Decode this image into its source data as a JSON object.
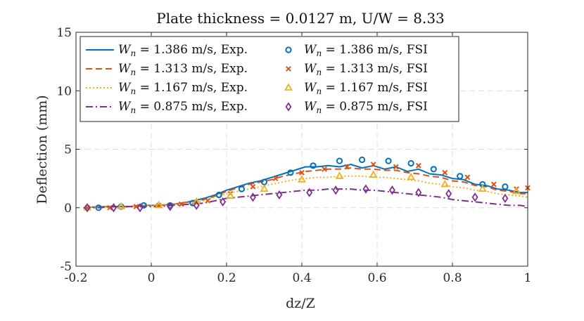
{
  "chart_data": {
    "type": "line",
    "title": "Plate thickness = 0.0127 m, U/W = 8.33",
    "xlabel": "dz/Z",
    "ylabel": "Deflection (mm)",
    "xlim": [
      -0.2,
      1.0
    ],
    "ylim": [
      -5,
      15
    ],
    "xticks": [
      -0.2,
      0,
      0.2,
      0.4,
      0.6,
      0.8,
      1.0
    ],
    "xtick_labels": [
      "-0.2",
      "0",
      "0.2",
      "0.4",
      "0.6",
      "0.8",
      "1"
    ],
    "yticks": [
      -5,
      0,
      5,
      10,
      15
    ],
    "ytick_labels": [
      "-5",
      "0",
      "5",
      "10",
      "15"
    ],
    "grid": true,
    "legend_position": "top-left",
    "series": [
      {
        "name": "W_n = 1.386 m/s, Exp.",
        "legend_var": "W",
        "legend_sub": "n",
        "legend_rest": " = 1.386 m/s, Exp.",
        "kind": "line",
        "style": "solid",
        "color": "#0072BD",
        "x": [
          -0.18,
          -0.14,
          -0.1,
          -0.06,
          -0.02,
          0.02,
          0.06,
          0.1,
          0.14,
          0.17,
          0.2,
          0.23,
          0.26,
          0.29,
          0.32,
          0.35,
          0.38,
          0.41,
          0.44,
          0.47,
          0.5,
          0.53,
          0.56,
          0.59,
          0.62,
          0.65,
          0.68,
          0.71,
          0.74,
          0.77,
          0.8,
          0.83,
          0.86,
          0.89,
          0.92,
          0.95,
          0.98,
          1.0
        ],
        "y": [
          0.0,
          0.1,
          0.1,
          0.1,
          0.2,
          0.2,
          0.3,
          0.5,
          0.8,
          1.1,
          1.5,
          1.8,
          2.1,
          2.3,
          2.6,
          2.9,
          3.2,
          3.5,
          3.5,
          3.6,
          3.5,
          3.7,
          3.4,
          3.6,
          3.3,
          3.5,
          3.1,
          3.3,
          2.9,
          2.8,
          2.5,
          2.4,
          2.0,
          1.9,
          1.6,
          1.5,
          1.3,
          1.3
        ]
      },
      {
        "name": "W_n = 1.313 m/s, Exp.",
        "legend_var": "W",
        "legend_sub": "n",
        "legend_rest": " = 1.313 m/s, Exp.",
        "kind": "line",
        "style": "dashed",
        "color": "#D95319",
        "x": [
          -0.18,
          -0.14,
          -0.1,
          -0.06,
          -0.02,
          0.02,
          0.06,
          0.1,
          0.14,
          0.17,
          0.2,
          0.23,
          0.26,
          0.29,
          0.32,
          0.35,
          0.38,
          0.41,
          0.44,
          0.47,
          0.5,
          0.53,
          0.56,
          0.59,
          0.62,
          0.65,
          0.68,
          0.71,
          0.74,
          0.77,
          0.8,
          0.83,
          0.86,
          0.89,
          0.92,
          0.95,
          0.98,
          1.0
        ],
        "y": [
          0.0,
          0.1,
          0.1,
          0.1,
          0.2,
          0.2,
          0.3,
          0.5,
          0.7,
          1.0,
          1.4,
          1.7,
          2.0,
          2.2,
          2.4,
          2.7,
          2.9,
          3.1,
          3.2,
          3.3,
          3.3,
          3.4,
          3.3,
          3.3,
          3.2,
          3.2,
          3.0,
          2.9,
          2.7,
          2.6,
          2.3,
          2.2,
          1.9,
          1.8,
          1.5,
          1.4,
          1.2,
          1.2
        ]
      },
      {
        "name": "W_n = 1.167 m/s, Exp.",
        "legend_var": "W",
        "legend_sub": "n",
        "legend_rest": " = 1.167 m/s, Exp.",
        "kind": "line",
        "style": "dotted",
        "color": "#EDB120",
        "x": [
          -0.18,
          -0.14,
          -0.1,
          -0.06,
          -0.02,
          0.02,
          0.06,
          0.1,
          0.14,
          0.17,
          0.2,
          0.23,
          0.26,
          0.29,
          0.32,
          0.35,
          0.38,
          0.41,
          0.44,
          0.47,
          0.5,
          0.53,
          0.56,
          0.59,
          0.62,
          0.65,
          0.68,
          0.71,
          0.74,
          0.77,
          0.8,
          0.83,
          0.86,
          0.89,
          0.92,
          0.95,
          0.98,
          1.0
        ],
        "y": [
          0.0,
          0.1,
          0.1,
          0.1,
          0.2,
          0.2,
          0.3,
          0.4,
          0.6,
          0.9,
          1.2,
          1.4,
          1.6,
          1.8,
          2.0,
          2.2,
          2.4,
          2.5,
          2.6,
          2.6,
          2.7,
          2.7,
          2.7,
          2.6,
          2.6,
          2.5,
          2.4,
          2.3,
          2.1,
          2.0,
          1.8,
          1.7,
          1.5,
          1.4,
          1.2,
          1.1,
          1.0,
          0.9
        ]
      },
      {
        "name": "W_n = 0.875 m/s, Exp.",
        "legend_var": "W",
        "legend_sub": "n",
        "legend_rest": " = 0.875 m/s, Exp.",
        "kind": "line",
        "style": "dashdot",
        "color": "#7E2F8E",
        "x": [
          -0.18,
          -0.14,
          -0.1,
          -0.06,
          -0.02,
          0.02,
          0.06,
          0.1,
          0.14,
          0.17,
          0.2,
          0.23,
          0.26,
          0.29,
          0.32,
          0.35,
          0.38,
          0.41,
          0.44,
          0.47,
          0.5,
          0.53,
          0.56,
          0.59,
          0.62,
          0.65,
          0.68,
          0.71,
          0.74,
          0.77,
          0.8,
          0.83,
          0.86,
          0.89,
          0.92,
          0.95,
          0.98,
          1.0
        ],
        "y": [
          0.0,
          0.0,
          0.1,
          0.1,
          0.1,
          0.1,
          0.2,
          0.3,
          0.4,
          0.6,
          0.8,
          0.9,
          1.0,
          1.1,
          1.2,
          1.3,
          1.4,
          1.5,
          1.5,
          1.6,
          1.6,
          1.6,
          1.5,
          1.5,
          1.4,
          1.3,
          1.2,
          1.1,
          1.0,
          0.9,
          0.7,
          0.6,
          0.5,
          0.4,
          0.3,
          0.2,
          0.2,
          0.1
        ]
      },
      {
        "name": "W_n = 1.386 m/s, FSI",
        "legend_var": "W",
        "legend_sub": "n",
        "legend_rest": " = 1.386 m/s, FSI",
        "kind": "marker",
        "marker": "circle",
        "color": "#0072BD",
        "x": [
          -0.14,
          -0.08,
          -0.02,
          0.05,
          0.11,
          0.18,
          0.24,
          0.3,
          0.37,
          0.43,
          0.5,
          0.56,
          0.63,
          0.69,
          0.75,
          0.82,
          0.88,
          0.94
        ],
        "y": [
          0.0,
          0.1,
          0.2,
          0.2,
          0.4,
          1.1,
          1.6,
          2.2,
          3.0,
          3.6,
          4.0,
          4.1,
          4.0,
          3.8,
          3.3,
          2.7,
          2.0,
          1.8
        ]
      },
      {
        "name": "W_n = 1.313 m/s, FSI",
        "legend_var": "W",
        "legend_sub": "n",
        "legend_rest": " = 1.313 m/s, FSI",
        "kind": "marker",
        "marker": "x",
        "color": "#D95319",
        "x": [
          -0.17,
          -0.11,
          -0.04,
          0.02,
          0.08,
          0.15,
          0.21,
          0.27,
          0.33,
          0.4,
          0.46,
          0.52,
          0.59,
          0.65,
          0.71,
          0.78,
          0.84,
          0.91,
          0.97,
          1.0
        ],
        "y": [
          0.0,
          0.0,
          0.1,
          0.2,
          0.3,
          0.6,
          1.2,
          1.8,
          2.5,
          3.0,
          3.3,
          3.5,
          3.7,
          3.5,
          3.6,
          3.0,
          2.6,
          2.0,
          1.6,
          1.7
        ]
      },
      {
        "name": "W_n = 1.167 m/s, FSI",
        "legend_var": "W",
        "legend_sub": "n",
        "legend_rest": " = 1.167 m/s, FSI",
        "kind": "marker",
        "marker": "triangle",
        "color": "#EDB120",
        "x": [
          -0.17,
          -0.08,
          0.02,
          0.12,
          0.21,
          0.3,
          0.4,
          0.5,
          0.59,
          0.69,
          0.78,
          0.88,
          0.97
        ],
        "y": [
          0.0,
          0.1,
          0.2,
          0.5,
          1.0,
          1.6,
          2.4,
          2.7,
          2.8,
          2.6,
          2.0,
          1.6,
          1.4
        ]
      },
      {
        "name": "W_n = 0.875 m/s, FSI",
        "legend_var": "W",
        "legend_sub": "n",
        "legend_rest": " = 0.875 m/s, FSI",
        "kind": "marker",
        "marker": "diamond",
        "color": "#7E2F8E",
        "x": [
          -0.17,
          -0.1,
          -0.03,
          0.05,
          0.12,
          0.19,
          0.27,
          0.34,
          0.42,
          0.49,
          0.57,
          0.64,
          0.71,
          0.79,
          0.86,
          0.94
        ],
        "y": [
          0.0,
          0.0,
          0.0,
          0.1,
          0.2,
          0.5,
          0.9,
          1.1,
          1.3,
          1.5,
          1.6,
          1.5,
          1.3,
          1.2,
          0.9,
          0.8
        ]
      }
    ]
  }
}
